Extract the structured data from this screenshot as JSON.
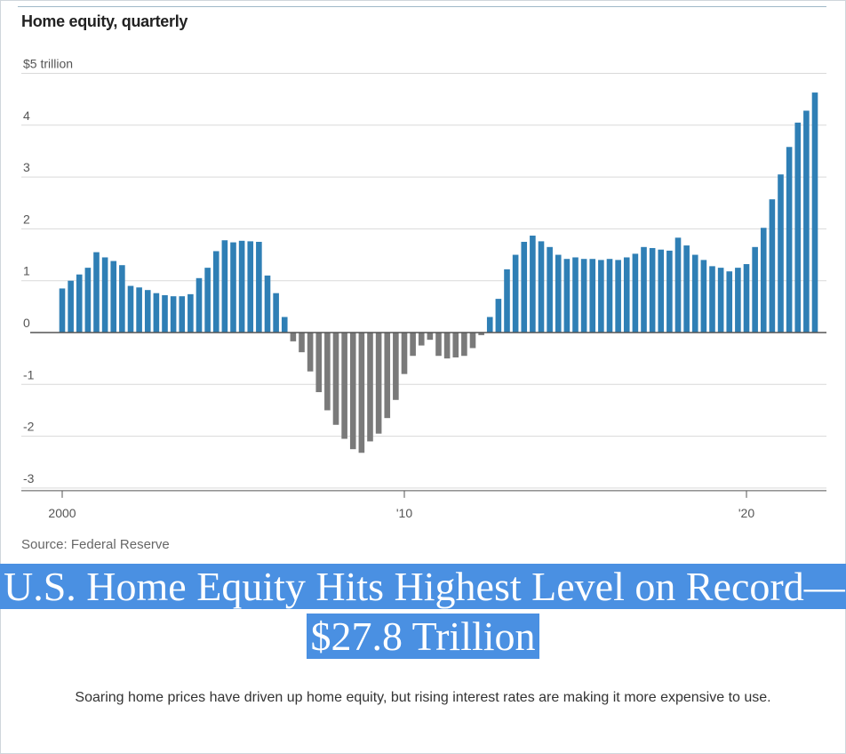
{
  "chart_data": {
    "type": "bar",
    "title": "Home equity, quarterly",
    "unit_label": "$5 trillion",
    "yticks": [
      "$5 trillion",
      "4",
      "3",
      "2",
      "1",
      "0",
      "-1",
      "-2",
      "-3"
    ],
    "ytick_values": [
      5,
      4,
      3,
      2,
      1,
      0,
      -1,
      -2,
      -3
    ],
    "ylim": [
      -3,
      5
    ],
    "xticks": [
      {
        "label": "2000",
        "x": 2000
      },
      {
        "label": "'10",
        "x": 2010
      },
      {
        "label": "'20",
        "x": 2020
      }
    ],
    "x_start": 2000.0,
    "x_step": 0.25,
    "values": [
      0.85,
      1.0,
      1.12,
      1.25,
      1.55,
      1.45,
      1.38,
      1.3,
      0.9,
      0.87,
      0.82,
      0.76,
      0.72,
      0.7,
      0.7,
      0.74,
      1.05,
      1.25,
      1.57,
      1.78,
      1.74,
      1.77,
      1.76,
      1.75,
      1.1,
      0.76,
      0.3,
      -0.17,
      -0.38,
      -0.75,
      -1.15,
      -1.5,
      -1.78,
      -2.05,
      -2.25,
      -2.32,
      -2.1,
      -1.95,
      -1.65,
      -1.3,
      -0.8,
      -0.45,
      -0.25,
      -0.14,
      -0.45,
      -0.5,
      -0.48,
      -0.45,
      -0.3,
      -0.05,
      0.3,
      0.65,
      1.22,
      1.5,
      1.75,
      1.87,
      1.76,
      1.65,
      1.5,
      1.42,
      1.45,
      1.42,
      1.42,
      1.4,
      1.42,
      1.4,
      1.45,
      1.52,
      1.65,
      1.63,
      1.6,
      1.58,
      1.83,
      1.68,
      1.5,
      1.4,
      1.28,
      1.25,
      1.18,
      1.25,
      1.32,
      1.65,
      2.02,
      2.57,
      3.05,
      3.58,
      4.05,
      4.28,
      4.63
    ],
    "positive_color": "#2f7fb5",
    "negative_color": "#7a7a7a",
    "grid": true
  },
  "source": "Source: Federal Reserve",
  "headline": "U.S. Home Equity Hits Highest Level on Record—$27.8 Trillion",
  "subhead": "Soaring home prices have driven up home equity, but rising interest rates are making it more expensive to use."
}
